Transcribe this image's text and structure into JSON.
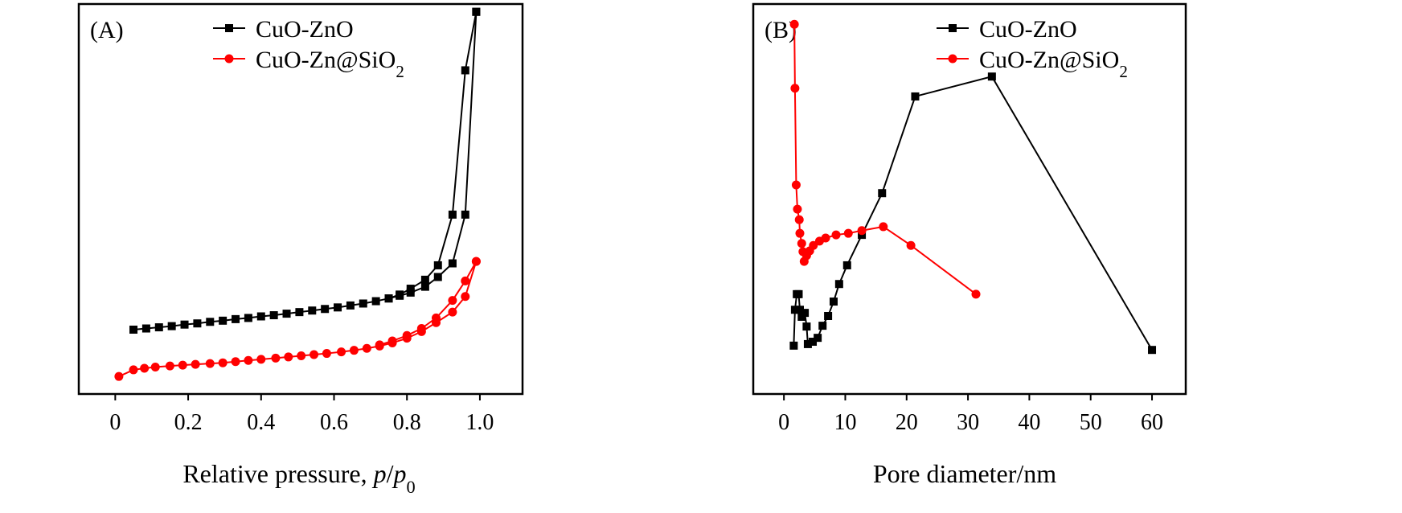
{
  "chart_data": [
    {
      "type": "line",
      "panel_label": "(A)",
      "xlabel_parts": [
        "Relative pressure, ",
        "p",
        "/",
        "p",
        "0"
      ],
      "ylabel": "",
      "xlim": [
        -0.1,
        1.117
      ],
      "ylim": [
        0,
        100
      ],
      "xticks": [
        0,
        0.2,
        0.4,
        0.6,
        0.8,
        1.0
      ],
      "xtick_labels": [
        "0",
        "0.2",
        "0.4",
        "0.6",
        "0.8",
        "1.0"
      ],
      "legend_position": "top-center",
      "series": [
        {
          "name": "CuO-ZnO",
          "legend_parts": [
            "CuO-ZnO"
          ],
          "color": "#000000",
          "marker": "square",
          "branch": "adsorption",
          "x": [
            0.05,
            0.085,
            0.12,
            0.155,
            0.19,
            0.225,
            0.26,
            0.295,
            0.33,
            0.365,
            0.4,
            0.435,
            0.47,
            0.505,
            0.54,
            0.575,
            0.61,
            0.645,
            0.68,
            0.715,
            0.75,
            0.78,
            0.81,
            0.85,
            0.885,
            0.925,
            0.96,
            0.99
          ],
          "y": [
            16.5,
            16.8,
            17.1,
            17.4,
            17.8,
            18.1,
            18.5,
            18.8,
            19.2,
            19.5,
            19.9,
            20.2,
            20.6,
            21.0,
            21.4,
            21.8,
            22.2,
            22.7,
            23.2,
            23.8,
            24.5,
            25.2,
            26.0,
            27.5,
            30.0,
            33.5,
            46.0,
            98.0
          ]
        },
        {
          "name": "CuO-ZnO",
          "color": "#000000",
          "marker": "square",
          "branch": "desorption",
          "x": [
            0.99,
            0.96,
            0.925,
            0.885,
            0.85,
            0.81,
            0.78,
            0.75
          ],
          "y": [
            98.0,
            83.0,
            46.0,
            33.0,
            29.3,
            27.0,
            25.5,
            24.5
          ]
        },
        {
          "name": "CuO-Zn@SiO2",
          "legend_parts": [
            "CuO-Zn@SiO",
            "2"
          ],
          "color": "#ff0000",
          "marker": "circle",
          "branch": "adsorption",
          "x": [
            0.01,
            0.05,
            0.08,
            0.11,
            0.15,
            0.185,
            0.22,
            0.26,
            0.295,
            0.33,
            0.365,
            0.4,
            0.44,
            0.475,
            0.51,
            0.545,
            0.58,
            0.62,
            0.655,
            0.69,
            0.725,
            0.76,
            0.8,
            0.84,
            0.88,
            0.925,
            0.96,
            0.99
          ],
          "y": [
            4.5,
            6.2,
            6.6,
            6.9,
            7.2,
            7.4,
            7.6,
            7.8,
            8.0,
            8.3,
            8.6,
            8.9,
            9.2,
            9.5,
            9.8,
            10.1,
            10.4,
            10.8,
            11.2,
            11.7,
            12.3,
            13.1,
            14.3,
            16.0,
            18.3,
            21.0,
            25.0,
            34.0
          ]
        },
        {
          "name": "CuO-Zn@SiO2",
          "color": "#ff0000",
          "marker": "circle",
          "branch": "desorption",
          "x": [
            0.99,
            0.96,
            0.925,
            0.88,
            0.84,
            0.8,
            0.76,
            0.725
          ],
          "y": [
            34.0,
            29.0,
            24.0,
            19.5,
            16.8,
            15.0,
            13.6,
            12.6
          ]
        }
      ]
    },
    {
      "type": "line",
      "panel_label": "(B)",
      "xlabel_parts": [
        "Pore diameter/nm"
      ],
      "ylabel": "",
      "xlim": [
        -5,
        65.5
      ],
      "ylim": [
        0,
        100
      ],
      "xticks": [
        0,
        10,
        20,
        30,
        40,
        50,
        60
      ],
      "xtick_labels": [
        "0",
        "10",
        "20",
        "30",
        "40",
        "50",
        "60"
      ],
      "legend_position": "top-center",
      "series": [
        {
          "name": "CuO-ZnO",
          "legend_parts": [
            "CuO-ZnO"
          ],
          "color": "#000000",
          "marker": "square",
          "x": [
            1.6,
            1.8,
            2.1,
            2.4,
            2.6,
            2.9,
            3.4,
            3.7,
            3.9,
            4.7,
            5.5,
            6.3,
            7.2,
            8.1,
            9.0,
            10.3,
            12.7,
            16.0,
            21.4,
            33.9,
            60.0
          ],
          "y": [
            12.4,
            21.6,
            25.6,
            25.6,
            21.6,
            19.8,
            20.8,
            17.3,
            12.8,
            13.4,
            14.4,
            17.5,
            20.0,
            23.7,
            28.2,
            33.0,
            40.8,
            51.5,
            76.3,
            81.4,
            11.3
          ]
        },
        {
          "name": "CuO-Zn@SiO2",
          "legend_parts": [
            "CuO-Zn@SiO",
            "2"
          ],
          "color": "#ff0000",
          "marker": "circle",
          "x": [
            1.7,
            1.8,
            2.0,
            2.2,
            2.5,
            2.6,
            2.9,
            3.1,
            3.3,
            3.7,
            4.2,
            4.8,
            5.8,
            6.8,
            8.5,
            10.5,
            12.7,
            16.2,
            20.7,
            31.3
          ],
          "y": [
            94.8,
            78.4,
            53.6,
            47.4,
            44.7,
            41.2,
            38.6,
            36.5,
            34.0,
            35.5,
            36.7,
            38.1,
            39.2,
            40.0,
            40.8,
            41.2,
            41.9,
            42.9,
            38.1,
            25.6
          ]
        }
      ]
    }
  ]
}
